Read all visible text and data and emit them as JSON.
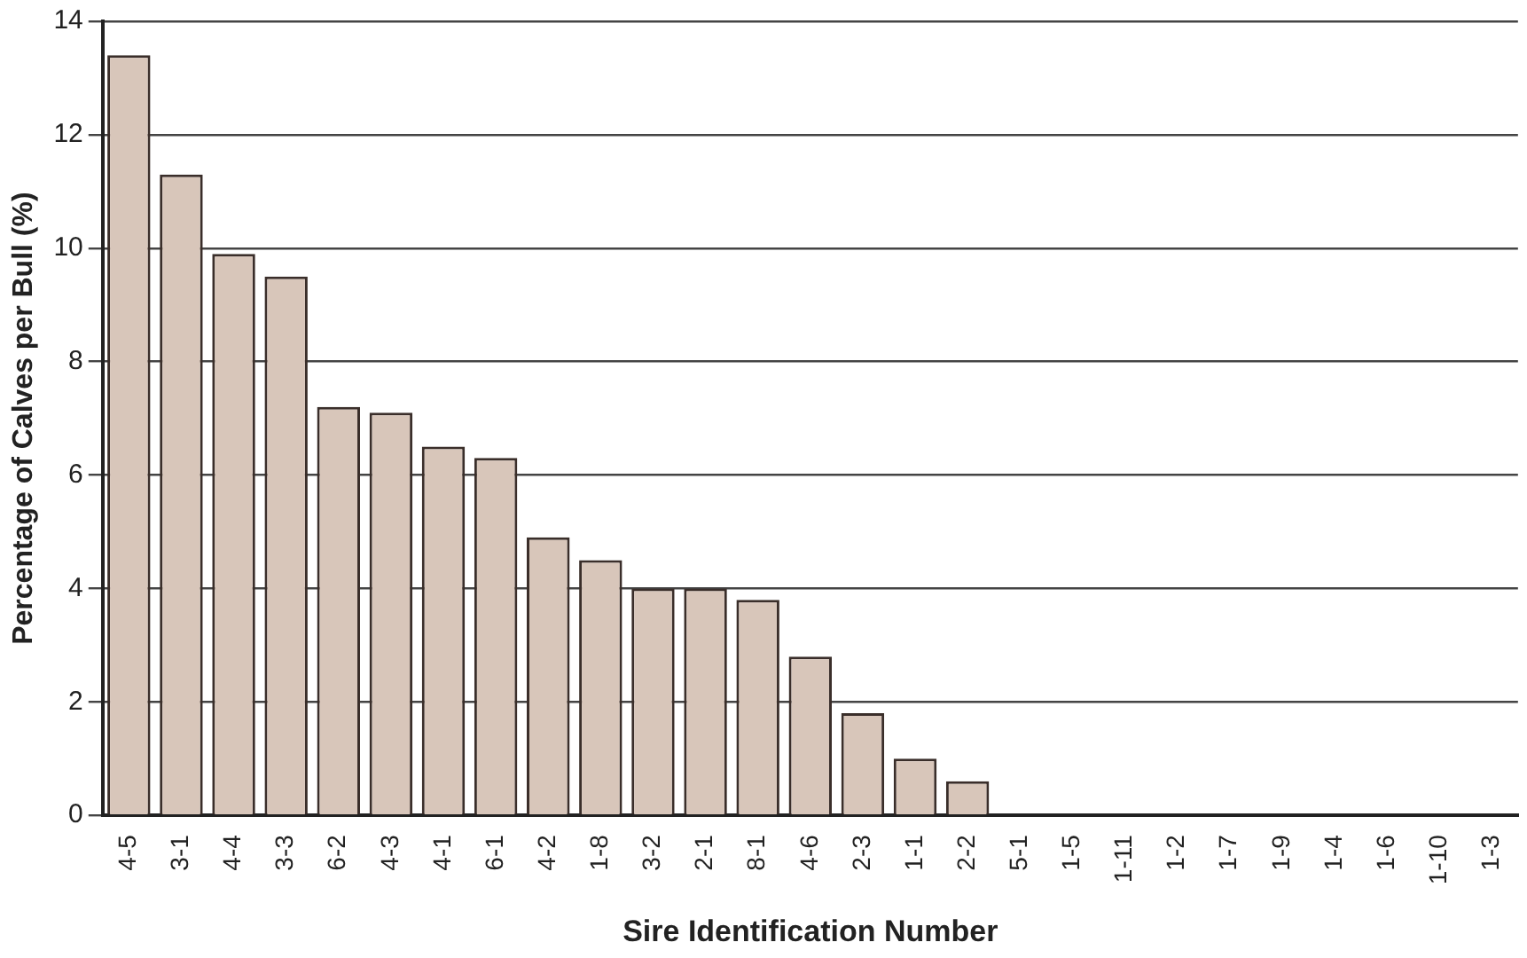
{
  "chart_data": {
    "type": "bar",
    "xlabel": "Sire Identification Number",
    "ylabel": "Percentage of Calves per Bull (%)",
    "categories": [
      "4-5",
      "3-1",
      "4-4",
      "3-3",
      "6-2",
      "4-3",
      "4-1",
      "6-1",
      "4-2",
      "1-8",
      "3-2",
      "2-1",
      "8-1",
      "4-6",
      "2-3",
      "1-1",
      "2-2",
      "5-1",
      "1-5",
      "1-11",
      "1-2",
      "1-7",
      "1-9",
      "1-4",
      "1-6",
      "1-10",
      "1-3"
    ],
    "values": [
      13.4,
      11.3,
      9.9,
      9.5,
      7.2,
      7.1,
      6.5,
      6.3,
      4.9,
      4.5,
      4.0,
      4.0,
      3.8,
      2.8,
      1.8,
      1.0,
      0.6,
      0,
      0,
      0,
      0,
      0,
      0,
      0,
      0,
      0,
      0
    ],
    "color": "#d8c6ba",
    "ylim": [
      0,
      14
    ],
    "yticks": [
      0,
      2,
      4,
      6,
      8,
      10,
      12,
      14
    ],
    "grid": "y",
    "legend": false
  }
}
